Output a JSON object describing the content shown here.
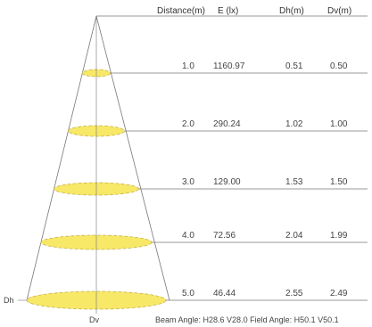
{
  "headers": [
    "Distance(m)",
    "E (lx)",
    "Dh(m)",
    "Dv(m)"
  ],
  "rows": [
    {
      "distance": "1.0",
      "e": "1160.97",
      "dh": "0.51",
      "dv": "0.50"
    },
    {
      "distance": "2.0",
      "e": "290.24",
      "dh": "1.02",
      "dv": "1.00"
    },
    {
      "distance": "3.0",
      "e": "129.00",
      "dh": "1.53",
      "dv": "1.50"
    },
    {
      "distance": "4.0",
      "e": "72.56",
      "dh": "2.04",
      "dv": "1.99"
    },
    {
      "distance": "5.0",
      "e": "46.44",
      "dh": "2.55",
      "dv": "2.49"
    }
  ],
  "labels": {
    "dh": "Dh",
    "dv": "Dv"
  },
  "footer": "Beam Angle: H28.6 V28.0  Field Angle: H50.1 V50.1",
  "colors": {
    "ellipse_fill": "#f7e867",
    "lines": "#777777",
    "ellipse_stroke": "#c9b64a"
  }
}
